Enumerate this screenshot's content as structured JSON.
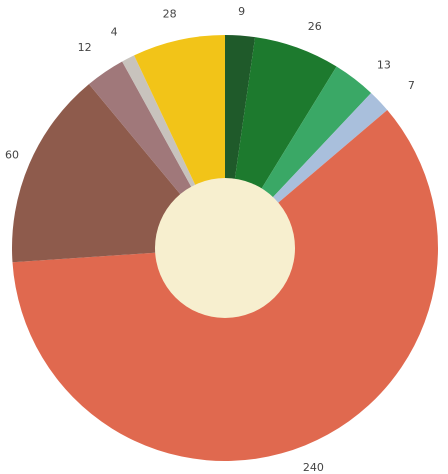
{
  "chart_data": {
    "type": "pie",
    "variant": "donut",
    "values": [
      9,
      26,
      13,
      7,
      240,
      60,
      12,
      4,
      28
    ],
    "value_labels": [
      "9",
      "26",
      "13",
      "7",
      "240",
      "60",
      "12",
      "4",
      "28"
    ],
    "colors": [
      "#1f5a2a",
      "#1d7a2e",
      "#3aa866",
      "#a9bfdc",
      "#e0694f",
      "#8e5b4c",
      "#a0787a",
      "#c8c3bd",
      "#f2c418"
    ],
    "center_color": "#f7efcf",
    "start_angle": "top",
    "direction": "clockwise",
    "legend": "none"
  }
}
